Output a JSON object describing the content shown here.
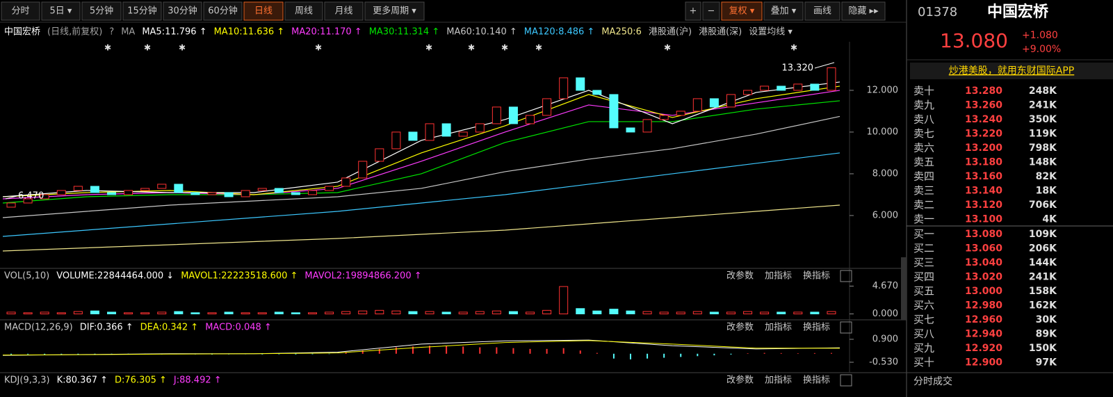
{
  "toolbar": {
    "periods": [
      "分时",
      "5日 ▾",
      "5分钟",
      "15分钟",
      "30分钟",
      "60分钟",
      "日线",
      "周线",
      "月线",
      "更多周期 ▾"
    ],
    "active_period": 6,
    "tools": [
      "+",
      "−",
      "复权 ▾",
      "叠加 ▾",
      "画线",
      "隐藏 ▸▸"
    ],
    "active_tool": 2
  },
  "legend": {
    "items": [
      {
        "text": "中国宏桥",
        "color": "#ffffff"
      },
      {
        "text": "(日线,前复权)",
        "color": "#a0a0a0"
      },
      {
        "text": "?",
        "color": "#a0a0a0"
      },
      {
        "text": "MA",
        "color": "#a0a0a0"
      },
      {
        "text": "MA5:11.796 ↑",
        "color": "#ffffff"
      },
      {
        "text": "MA10:11.636 ↑",
        "color": "#ffff00"
      },
      {
        "text": "MA20:11.170 ↑",
        "color": "#ff3cff"
      },
      {
        "text": "MA30:11.314 ↑",
        "color": "#00e600"
      },
      {
        "text": "MA60:10.140 ↑",
        "color": "#c8c8c8"
      },
      {
        "text": "MA120:8.486 ↑",
        "color": "#3cc8ff"
      },
      {
        "text": "MA250:6",
        "color": "#f0e68c"
      },
      {
        "text": "港股通(沪)",
        "color": "#c8c8c8"
      },
      {
        "text": "港股通(深)",
        "color": "#c8c8c8"
      },
      {
        "text": "设置均线 ▾",
        "color": "#c8c8c8"
      }
    ]
  },
  "price_chart": {
    "ylim": [
      3.5,
      14.33
    ],
    "yticks": [
      {
        "value": 6,
        "label": "6.000"
      },
      {
        "value": 8,
        "label": "8.000"
      },
      {
        "value": 10,
        "label": "10.000"
      },
      {
        "value": 12,
        "label": "12.000"
      }
    ],
    "up_color": "#ff3232",
    "down_color": "#54fcfc",
    "candles": [
      [
        6.4,
        6.6
      ],
      [
        6.6,
        6.8
      ],
      [
        6.8,
        7.0
      ],
      [
        7.0,
        7.2
      ],
      [
        7.2,
        7.4
      ],
      [
        7.4,
        7.1
      ],
      [
        7.1,
        7.0
      ],
      [
        7.0,
        7.2
      ],
      [
        7.2,
        7.3
      ],
      [
        7.3,
        7.5
      ],
      [
        7.5,
        7.1
      ],
      [
        7.1,
        7.0
      ],
      [
        7.0,
        7.1
      ],
      [
        7.1,
        6.9
      ],
      [
        6.9,
        7.2
      ],
      [
        7.2,
        7.3
      ],
      [
        7.3,
        7.1
      ],
      [
        7.1,
        7.0
      ],
      [
        7.0,
        7.2
      ],
      [
        7.2,
        7.4
      ],
      [
        7.4,
        7.8
      ],
      [
        7.8,
        8.6
      ],
      [
        8.6,
        9.2
      ],
      [
        9.2,
        10.0
      ],
      [
        10.0,
        9.6
      ],
      [
        9.6,
        10.4
      ],
      [
        10.4,
        9.8
      ],
      [
        9.8,
        10.0
      ],
      [
        10.0,
        10.4
      ],
      [
        10.4,
        11.2
      ],
      [
        11.2,
        10.4
      ],
      [
        10.4,
        10.8
      ],
      [
        10.8,
        11.6
      ],
      [
        11.6,
        12.6
      ],
      [
        12.6,
        12.0
      ],
      [
        12.0,
        11.8
      ],
      [
        11.8,
        10.2
      ],
      [
        10.2,
        10.0
      ],
      [
        10.0,
        10.6
      ],
      [
        10.6,
        10.8
      ],
      [
        10.8,
        11.0
      ],
      [
        11.0,
        11.6
      ],
      [
        11.6,
        11.2
      ],
      [
        11.2,
        11.8
      ],
      [
        11.8,
        12.0
      ],
      [
        12.0,
        12.2
      ],
      [
        12.2,
        12.0
      ],
      [
        12.0,
        12.3
      ],
      [
        12.3,
        12.0
      ],
      [
        12.0,
        13.08
      ]
    ],
    "ma_lines": [
      {
        "color": "#f0e68c",
        "values": [
          4.3,
          4.45,
          4.6,
          4.75,
          4.9,
          5.1,
          5.3,
          5.6,
          5.9,
          6.2,
          6.5
        ]
      },
      {
        "color": "#3cc8ff",
        "values": [
          5.0,
          5.3,
          5.6,
          5.9,
          6.2,
          6.6,
          7.0,
          7.5,
          8.0,
          8.5,
          9.0
        ]
      },
      {
        "color": "#c8c8c8",
        "values": [
          5.9,
          6.2,
          6.5,
          6.7,
          6.9,
          7.3,
          8.1,
          8.7,
          9.2,
          9.9,
          10.75
        ]
      },
      {
        "color": "#00e600",
        "values": [
          6.6,
          6.9,
          7.0,
          7.0,
          7.1,
          8.0,
          9.5,
          10.5,
          10.5,
          11.1,
          11.5
        ]
      },
      {
        "color": "#ff3cff",
        "values": [
          6.8,
          7.0,
          7.1,
          7.0,
          7.3,
          8.6,
          10.0,
          11.3,
          10.8,
          11.4,
          12.0
        ]
      },
      {
        "color": "#ffff00",
        "values": [
          6.9,
          7.1,
          7.2,
          7.0,
          7.4,
          9.0,
          10.3,
          11.8,
          10.7,
          11.6,
          12.2
        ]
      },
      {
        "color": "#ffffff",
        "values": [
          6.9,
          7.2,
          7.1,
          7.1,
          7.6,
          9.6,
          10.6,
          12.0,
          10.4,
          11.9,
          12.4
        ]
      }
    ],
    "high_label": "13.320",
    "low_label": "6.470"
  },
  "volume_panel": {
    "header": [
      {
        "text": "VOL(5,10)",
        "color": "#c8c8c8"
      },
      {
        "text": "VOLUME:22844464.000 ↓",
        "color": "#ffffff"
      },
      {
        "text": "MAVOL1:22223518.600 ↑",
        "color": "#ffff00"
      },
      {
        "text": "MAVOL2:19894866.200 ↑",
        "color": "#ff3cff"
      }
    ],
    "buttons": [
      "改参数",
      "加指标",
      "换指标"
    ],
    "ylim": [
      -0.76,
      5.43
    ],
    "yticks": [
      {
        "value": 4.67,
        "label": "4.670"
      },
      {
        "value": 0,
        "label": "0.000"
      }
    ],
    "values": [
      0.3,
      0.2,
      0.3,
      0.2,
      0.4,
      0.5,
      0.3,
      0.2,
      0.2,
      0.3,
      0.4,
      0.2,
      0.2,
      0.3,
      0.2,
      0.2,
      0.3,
      0.2,
      0.2,
      0.3,
      0.4,
      0.5,
      0.6,
      0.5,
      0.4,
      0.4,
      0.3,
      0.3,
      0.4,
      0.5,
      0.4,
      0.3,
      0.6,
      4.6,
      0.9,
      0.5,
      0.8,
      0.5,
      0.4,
      0.3,
      0.3,
      0.4,
      0.3,
      0.3,
      0.4,
      0.3,
      0.3,
      0.3,
      0.3,
      0.4
    ]
  },
  "macd_panel": {
    "header": [
      {
        "text": "MACD(12,26,9)",
        "color": "#c8c8c8"
      },
      {
        "text": "DIF:0.366 ↑",
        "color": "#ffffff"
      },
      {
        "text": "DEA:0.342 ↑",
        "color": "#ffff00"
      },
      {
        "text": "MACD:0.048 ↑",
        "color": "#ff3cff"
      }
    ],
    "buttons": [
      "改参数",
      "加指标",
      "换指标"
    ],
    "ylim": [
      -0.92,
      1.68
    ],
    "yticks": [
      {
        "value": 0.9,
        "label": "0.900"
      },
      {
        "value": -0.53,
        "label": "-0.530"
      }
    ],
    "hist": [
      -0.05,
      -0.04,
      -0.05,
      -0.03,
      -0.04,
      -0.05,
      -0.04,
      -0.03,
      -0.05,
      -0.04,
      -0.03,
      -0.04,
      -0.05,
      -0.04,
      -0.03,
      -0.04,
      -0.03,
      -0.04,
      -0.03,
      -0.02,
      0.1,
      0.2,
      0.3,
      0.4,
      0.45,
      0.5,
      0.5,
      0.45,
      0.4,
      0.4,
      0.35,
      0.3,
      0.3,
      0.35,
      0.2,
      0.05,
      -0.3,
      -0.35,
      -0.3,
      -0.25,
      -0.2,
      -0.15,
      -0.1,
      -0.05,
      0.03,
      0.05,
      0.04,
      0.03,
      0.04,
      0.048
    ],
    "lines": [
      {
        "color": "#ffffff",
        "values": [
          -0.1,
          -0.05,
          0,
          0,
          0.1,
          0.6,
          0.8,
          0.85,
          0.5,
          0.3,
          0.37
        ]
      },
      {
        "color": "#ffff00",
        "values": [
          -0.08,
          -0.06,
          -0.02,
          0,
          0.05,
          0.4,
          0.7,
          0.82,
          0.6,
          0.35,
          0.34
        ]
      }
    ]
  },
  "kdj_panel": {
    "header": [
      {
        "text": "KDJ(9,3,3)",
        "color": "#c8c8c8"
      },
      {
        "text": "K:80.367 ↑",
        "color": "#ffffff"
      },
      {
        "text": "D:76.305 ↑",
        "color": "#ffff00"
      },
      {
        "text": "J:88.492 ↑",
        "color": "#ff3cff"
      }
    ],
    "buttons": [
      "改参数",
      "加指标",
      "换指标"
    ]
  },
  "quote": {
    "code": "01378",
    "name": "中国宏桥",
    "price": "13.080",
    "change": "+1.080",
    "change_pct": "+9.00%",
    "ad": "炒港美股，就用东财国际APP",
    "asks": [
      [
        "卖十",
        "13.280",
        "248K"
      ],
      [
        "卖九",
        "13.260",
        "241K"
      ],
      [
        "卖八",
        "13.240",
        "350K"
      ],
      [
        "卖七",
        "13.220",
        "119K"
      ],
      [
        "卖六",
        "13.200",
        "798K"
      ],
      [
        "卖五",
        "13.180",
        "148K"
      ],
      [
        "卖四",
        "13.160",
        "82K"
      ],
      [
        "卖三",
        "13.140",
        "18K"
      ],
      [
        "卖二",
        "13.120",
        "706K"
      ],
      [
        "卖一",
        "13.100",
        "4K"
      ]
    ],
    "bids": [
      [
        "买一",
        "13.080",
        "109K"
      ],
      [
        "买二",
        "13.060",
        "206K"
      ],
      [
        "买三",
        "13.040",
        "144K"
      ],
      [
        "买四",
        "13.020",
        "241K"
      ],
      [
        "买五",
        "13.000",
        "158K"
      ],
      [
        "买六",
        "12.980",
        "162K"
      ],
      [
        "买七",
        "12.960",
        "30K"
      ],
      [
        "买八",
        "12.940",
        "89K"
      ],
      [
        "买九",
        "12.920",
        "150K"
      ],
      [
        "买十",
        "12.900",
        "97K"
      ]
    ],
    "trades_title": "分时成交"
  }
}
